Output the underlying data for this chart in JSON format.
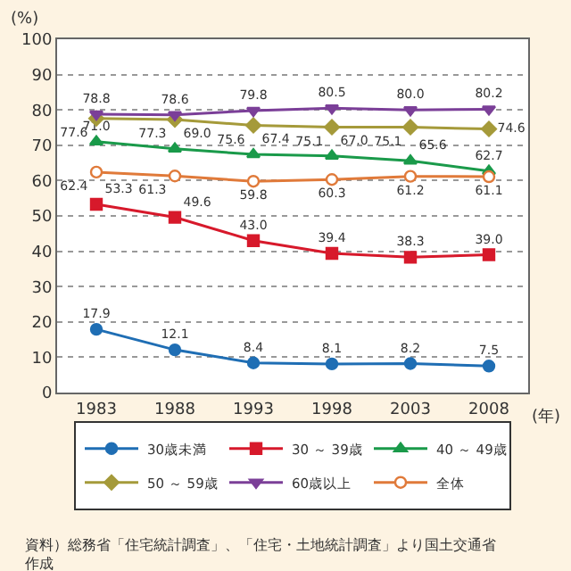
{
  "chart_data": {
    "type": "line",
    "ylabel": "(%)",
    "xlabel": "(年)",
    "categories": [
      "1983",
      "1988",
      "1993",
      "1998",
      "2003",
      "2008"
    ],
    "series": [
      {
        "name": "30歳未満",
        "color": "#1f6eb4",
        "marker": "circle",
        "values": [
          17.9,
          12.1,
          8.4,
          8.1,
          8.2,
          7.5
        ],
        "value_labels": [
          "17.9",
          "12.1",
          "8.4",
          "8.1",
          "8.2",
          "7.5"
        ]
      },
      {
        "name": "30 ～ 39歳",
        "color": "#d7192b",
        "marker": "square",
        "values": [
          53.3,
          49.6,
          43.0,
          39.4,
          38.3,
          39.0
        ],
        "value_labels": [
          "53.3",
          "49.6",
          "43.0",
          "39.4",
          "38.3",
          "39.0"
        ]
      },
      {
        "name": "40 ～ 49歳",
        "color": "#1a9a4a",
        "marker": "triangle",
        "values": [
          71.0,
          69.0,
          67.4,
          67.0,
          65.6,
          62.7
        ],
        "value_labels": [
          "71.0",
          "69.0",
          "67.4",
          "67.0",
          "65.6",
          "62.7"
        ]
      },
      {
        "name": "50 ～ 59歳",
        "color": "#a59a3a",
        "marker": "diamond",
        "values": [
          77.6,
          77.3,
          75.6,
          75.1,
          75.1,
          74.6
        ],
        "value_labels": [
          "77.6",
          "77.3",
          "75.6",
          "75.1",
          "75.1",
          "74.6"
        ]
      },
      {
        "name": "60歳以上",
        "color": "#7b3f98",
        "marker": "triangle-down",
        "values": [
          78.8,
          78.6,
          79.8,
          80.5,
          80.0,
          80.2
        ],
        "value_labels": [
          "78.8",
          "78.6",
          "79.8",
          "80.5",
          "80.0",
          "80.2"
        ]
      },
      {
        "name": "全体",
        "color": "#e07a3a",
        "marker": "open-circle",
        "values": [
          62.4,
          61.3,
          59.8,
          60.3,
          61.2,
          61.1
        ],
        "value_labels": [
          "62.4",
          "61.3",
          "59.8",
          "60.3",
          "61.2",
          "61.1"
        ]
      }
    ],
    "ylim": [
      0,
      100
    ],
    "yticks": [
      0,
      10,
      20,
      30,
      40,
      50,
      60,
      70,
      80,
      90,
      100
    ],
    "grid": "y",
    "legend": "bottom",
    "annotations": [
      "資料）総務省「住宅統計調査」、「住宅・土地統計調査」より国土交通省作成"
    ]
  }
}
